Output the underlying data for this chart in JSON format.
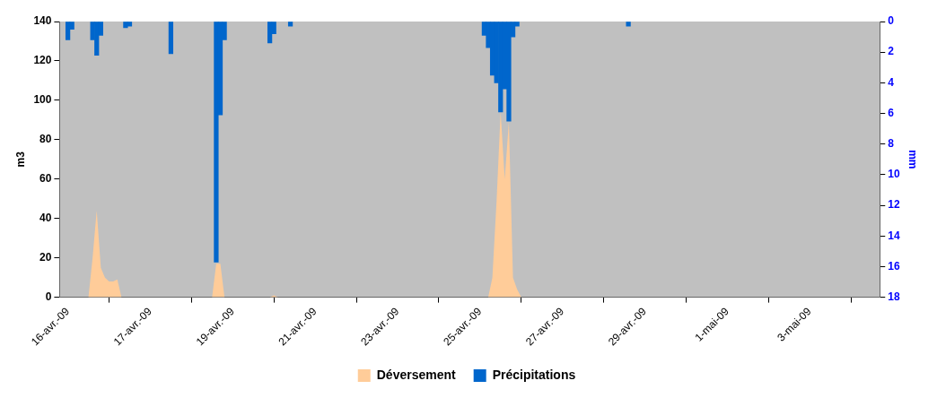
{
  "chart_data": {
    "type": "area",
    "ylabel": "m3",
    "y2label": "mm",
    "ylim": [
      0,
      140
    ],
    "yticks": [
      0,
      20,
      40,
      60,
      80,
      100,
      120,
      140
    ],
    "y2lim": [
      18,
      0
    ],
    "y2ticks": [
      0,
      2,
      4,
      6,
      8,
      10,
      12,
      14,
      16,
      18
    ],
    "legend": "bottom",
    "grid": false,
    "categories": [
      null,
      null,
      "16-avr.-09",
      null,
      null,
      null,
      null,
      null,
      null,
      null,
      null,
      null,
      null,
      null,
      null,
      null,
      null,
      null,
      null,
      null,
      null,
      null,
      "17-avr.-09",
      null,
      null,
      null,
      null,
      null,
      null,
      null,
      null,
      null,
      null,
      null,
      null,
      null,
      null,
      null,
      null,
      null,
      null,
      null,
      "19-avr.-09",
      null,
      null,
      null,
      null,
      null,
      null,
      null,
      null,
      null,
      null,
      null,
      null,
      null,
      null,
      null,
      null,
      null,
      null,
      null,
      "21-avr.-09",
      null,
      null,
      null,
      null,
      null,
      null,
      null,
      null,
      null,
      null,
      null,
      null,
      null,
      null,
      null,
      null,
      null,
      null,
      null,
      "23-avr.-09",
      null,
      null,
      null,
      null,
      null,
      null,
      null,
      null,
      null,
      null,
      null,
      null,
      null,
      null,
      null,
      null,
      null,
      null,
      null,
      "25-avr.-09",
      null,
      null,
      null,
      null,
      null,
      null,
      null,
      null,
      null,
      null,
      null,
      null,
      null,
      null,
      null,
      null,
      null,
      null,
      null,
      "27-avr.-09",
      null,
      null,
      null,
      null,
      null,
      null,
      null,
      null,
      null,
      null,
      null,
      null,
      null,
      null,
      null,
      null,
      null,
      null,
      null,
      "29-avr.-09",
      null,
      null,
      null,
      null,
      null,
      null,
      null,
      null,
      null,
      null,
      null,
      null,
      null,
      null,
      null,
      null,
      null,
      null,
      null,
      "1-mai-09",
      null,
      null,
      null,
      null,
      null,
      null,
      null,
      null,
      null,
      null,
      null,
      null,
      null,
      null,
      null,
      null,
      null,
      null,
      null,
      "3-mai-09",
      null,
      null,
      null,
      null,
      null,
      null,
      null,
      null,
      null,
      null,
      null,
      null,
      null,
      null,
      null,
      null,
      null
    ],
    "series": [
      {
        "name": "Déversement",
        "color": "#ffcc99",
        "values": [
          0,
          0,
          0,
          0,
          0,
          0,
          0,
          0,
          20,
          44,
          15,
          10,
          8,
          8,
          9,
          0,
          0,
          0,
          0,
          0,
          0,
          0,
          0,
          0,
          0,
          0,
          0,
          0,
          0,
          0,
          0,
          0,
          0,
          0,
          0,
          0,
          0,
          0,
          17,
          17,
          0,
          0,
          0,
          0,
          0,
          0,
          0,
          0,
          0,
          0,
          0,
          0,
          1,
          0,
          0,
          0,
          0,
          0,
          0,
          0,
          0,
          0,
          0,
          0,
          0,
          0,
          0,
          0,
          0,
          0,
          0,
          0,
          0,
          0,
          0,
          0,
          0,
          0,
          0,
          0,
          0,
          0,
          0,
          0,
          0,
          0,
          0,
          0,
          0,
          0,
          0,
          0,
          0,
          0,
          0,
          0,
          0,
          0,
          0,
          0,
          0,
          0,
          0,
          0,
          0,
          10,
          48,
          94,
          60,
          89,
          10,
          4,
          0,
          0,
          0,
          0,
          0,
          0,
          0,
          0,
          0,
          0,
          0,
          0,
          0,
          0,
          0,
          0,
          0,
          0,
          0,
          0,
          0,
          0,
          0,
          0,
          0,
          0,
          0,
          0,
          0,
          0,
          0,
          0,
          0,
          0,
          0,
          0,
          0,
          0,
          0,
          0,
          0,
          0,
          0,
          0,
          0,
          0,
          0,
          0,
          0,
          0,
          0,
          0,
          0,
          0,
          0,
          0,
          0,
          0,
          0,
          0,
          0,
          0,
          0,
          0,
          0,
          0,
          0,
          0,
          0,
          0,
          0,
          0,
          0,
          0,
          0,
          0,
          0,
          0,
          0,
          0,
          0,
          0,
          0,
          0,
          0,
          0,
          0,
          0
        ]
      },
      {
        "name": "Précipitations",
        "type": "bar",
        "axis": "y2",
        "color": "#0066cc",
        "values": [
          null,
          null,
          1.2,
          0.5,
          null,
          null,
          null,
          null,
          1.2,
          2.2,
          0.9,
          null,
          null,
          null,
          null,
          null,
          0.4,
          0.3,
          null,
          null,
          null,
          null,
          null,
          null,
          null,
          null,
          null,
          2.1,
          null,
          null,
          null,
          null,
          null,
          null,
          null,
          null,
          null,
          null,
          15.7,
          6.1,
          1.2,
          null,
          null,
          null,
          null,
          null,
          null,
          null,
          null,
          null,
          null,
          1.4,
          0.8,
          null,
          null,
          null,
          0.3,
          null,
          null,
          null,
          null,
          null,
          null,
          null,
          null,
          null,
          null,
          null,
          null,
          null,
          null,
          null,
          null,
          null,
          null,
          null,
          null,
          null,
          null,
          null,
          null,
          null,
          null,
          null,
          null,
          null,
          null,
          null,
          null,
          null,
          null,
          null,
          null,
          null,
          null,
          null,
          null,
          null,
          null,
          null,
          null,
          null,
          null,
          0.9,
          1.7,
          3.5,
          4.0,
          5.9,
          4.4,
          6.5,
          1.0,
          0.3,
          null,
          null,
          null,
          null,
          null,
          null,
          null,
          null,
          null,
          null,
          null,
          null,
          null,
          null,
          null,
          null,
          null,
          null,
          null,
          null,
          null,
          null,
          null,
          null,
          null,
          null,
          0.3,
          null,
          null,
          null,
          null,
          null,
          null,
          null,
          null,
          null,
          null,
          null,
          null,
          null,
          null,
          null,
          null,
          null,
          null,
          null,
          null,
          null,
          null,
          null,
          null,
          null,
          null,
          null,
          null,
          null,
          null,
          null,
          null,
          null,
          null,
          null,
          null,
          null,
          null,
          null,
          null,
          null,
          null,
          null,
          null,
          null,
          null,
          null,
          null,
          null,
          null,
          null,
          null,
          null,
          null,
          null,
          null,
          null,
          null,
          null,
          null,
          null
        ]
      }
    ]
  }
}
